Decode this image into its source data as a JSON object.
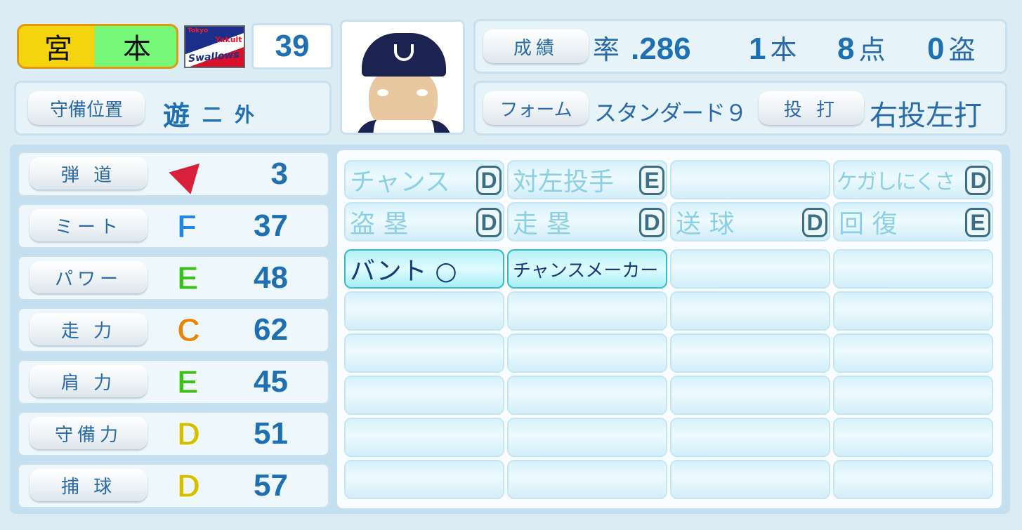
{
  "player": {
    "name_family": "宮",
    "name_given": "本",
    "team_logo": "Yakult Swallows",
    "team_logo_top": "Tokyo",
    "team_logo_mid": "Yakult",
    "team_logo_main": "Swallows",
    "number": "39"
  },
  "position": {
    "label": "守備位置",
    "main": "遊",
    "subs": [
      "二",
      "外"
    ]
  },
  "stats": {
    "label": "成績",
    "avg_prefix": "率",
    "avg": ".286",
    "hr": "1",
    "hr_unit": "本",
    "rbi": "8",
    "rbi_unit": "点",
    "sb": "0",
    "sb_unit": "盗"
  },
  "form": {
    "label": "フォーム",
    "value": "スタンダード９"
  },
  "hand": {
    "label": "投 打",
    "value": "右投左打"
  },
  "abilities": [
    {
      "label": "弾 道",
      "grade": "",
      "value": "3",
      "icon": "trajectory-arrow-icon"
    },
    {
      "label": "ミート",
      "grade": "F",
      "value": "37",
      "color": "#1e88e5"
    },
    {
      "label": "パワー",
      "grade": "E",
      "value": "48",
      "color": "#3cc01e"
    },
    {
      "label": "走 力",
      "grade": "C",
      "value": "62",
      "color": "#e8860c"
    },
    {
      "label": "肩 力",
      "grade": "E",
      "value": "45",
      "color": "#3cc01e"
    },
    {
      "label": "守備力",
      "grade": "D",
      "value": "51",
      "color": "#d4c000"
    },
    {
      "label": "捕 球",
      "grade": "D",
      "value": "57",
      "color": "#d4c000"
    }
  ],
  "skills_graded": [
    {
      "label": "チャンス",
      "grade": "D"
    },
    {
      "label": "対左投手",
      "grade": "E"
    },
    {
      "label": "",
      "grade": ""
    },
    {
      "label": "ケガしにくさ",
      "grade": "D"
    },
    {
      "label": "盗 塁",
      "grade": "D"
    },
    {
      "label": "走 塁",
      "grade": "D"
    },
    {
      "label": "送 球",
      "grade": "D"
    },
    {
      "label": "回 復",
      "grade": "E"
    }
  ],
  "skills": [
    "バント ○",
    "チャンスメーカー",
    "",
    "",
    "",
    "",
    "",
    "",
    "",
    "",
    "",
    "",
    "",
    "",
    "",
    "",
    "",
    "",
    "",
    "",
    "",
    "",
    "",
    ""
  ]
}
